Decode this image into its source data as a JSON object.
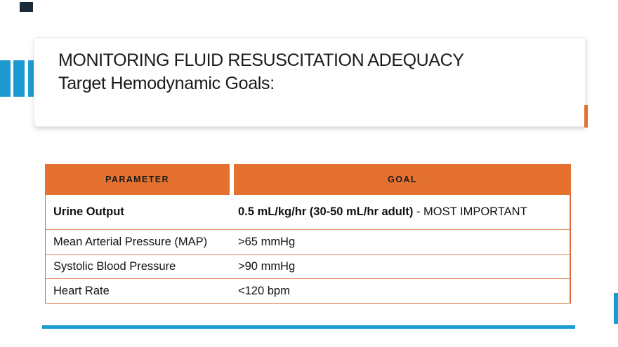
{
  "title": {
    "line1": "MONITORING FLUID RESUSCITATION ADEQUACY",
    "line2": "Target Hemodynamic Goals:"
  },
  "table": {
    "headers": {
      "parameter": "PARAMETER",
      "goal": "GOAL"
    },
    "rows": [
      {
        "parameter": "Urine Output",
        "goal_bold": "0.5 mL/kg/hr (30-50 mL/hr adult)",
        "goal_plain": " - MOST IMPORTANT"
      },
      {
        "parameter": "Mean Arterial Pressure (MAP)",
        "goal": ">65 mmHg"
      },
      {
        "parameter": "Systolic Blood Pressure",
        "goal": ">90 mmHg"
      },
      {
        "parameter": "Heart Rate",
        "goal": "<120 bpm"
      }
    ]
  },
  "colors": {
    "accent_blue": "#1E9AD2",
    "header_orange": "#E4712F",
    "border_orange": "#E0875B",
    "outer_orange": "#D9703C",
    "dark_corner": "#1B2A3A",
    "accent_orange_dash": "#DE7433"
  }
}
